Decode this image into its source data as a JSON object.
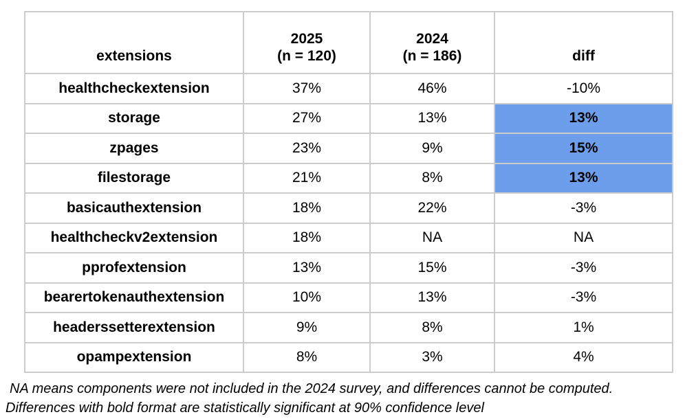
{
  "table": {
    "headers": {
      "col1": "extensions",
      "col2_line1": "2025",
      "col2_line2": "(n = 120)",
      "col3_line1": "2024",
      "col3_line2": "(n = 186)",
      "col4": "diff"
    },
    "rows": [
      {
        "name": "healthcheckextension",
        "v2025": "37%",
        "v2024": "46%",
        "diff": "-10%",
        "highlight": false
      },
      {
        "name": "storage",
        "v2025": "27%",
        "v2024": "13%",
        "diff": "13%",
        "highlight": true
      },
      {
        "name": "zpages",
        "v2025": "23%",
        "v2024": "9%",
        "diff": "15%",
        "highlight": true
      },
      {
        "name": "filestorage",
        "v2025": "21%",
        "v2024": "8%",
        "diff": "13%",
        "highlight": true
      },
      {
        "name": "basicauthextension",
        "v2025": "18%",
        "v2024": "22%",
        "diff": "-3%",
        "highlight": false
      },
      {
        "name": "healthcheckv2extension",
        "v2025": "18%",
        "v2024": "NA",
        "diff": "NA",
        "highlight": false
      },
      {
        "name": "pprofextension",
        "v2025": "13%",
        "v2024": "15%",
        "diff": "-3%",
        "highlight": false
      },
      {
        "name": "bearertokenauthextension",
        "v2025": "10%",
        "v2024": "13%",
        "diff": "-3%",
        "highlight": false
      },
      {
        "name": "headerssetterextension",
        "v2025": "9%",
        "v2024": "8%",
        "diff": "1%",
        "highlight": false
      },
      {
        "name": "opampextension",
        "v2025": "8%",
        "v2024": "3%",
        "diff": "4%",
        "highlight": false
      }
    ]
  },
  "footnotes": [
    "NA means components were not included in the 2024 survey, and differences cannot be computed.",
    "Differences with bold format are statistically significant at 90% confidence level"
  ],
  "colors": {
    "highlight": "#6d9eeb",
    "border": "#cccccc"
  },
  "chart_data": {
    "type": "table",
    "title": "",
    "columns": [
      "extensions",
      "2025 (n = 120)",
      "2024 (n = 186)",
      "diff"
    ],
    "rows": [
      [
        "healthcheckextension",
        "37%",
        "46%",
        "-10%"
      ],
      [
        "storage",
        "27%",
        "13%",
        "13%"
      ],
      [
        "zpages",
        "23%",
        "9%",
        "15%"
      ],
      [
        "filestorage",
        "21%",
        "8%",
        "13%"
      ],
      [
        "basicauthextension",
        "18%",
        "22%",
        "-3%"
      ],
      [
        "healthcheckv2extension",
        "18%",
        "NA",
        "NA"
      ],
      [
        "pprofextension",
        "13%",
        "15%",
        "-3%"
      ],
      [
        "bearertokenauthextension",
        "10%",
        "13%",
        "-3%"
      ],
      [
        "headerssetterextension",
        "9%",
        "8%",
        "1%"
      ],
      [
        "opampextension",
        "8%",
        "3%",
        "4%"
      ]
    ],
    "highlighted_diff_rows": [
      "storage",
      "zpages",
      "filestorage"
    ],
    "highlight_meaning": "statistically significant at 90% confidence level",
    "notes": [
      "NA means components were not included in the 2024 survey, and differences cannot be computed.",
      "Differences with bold format are statistically significant at 90% confidence level"
    ]
  }
}
